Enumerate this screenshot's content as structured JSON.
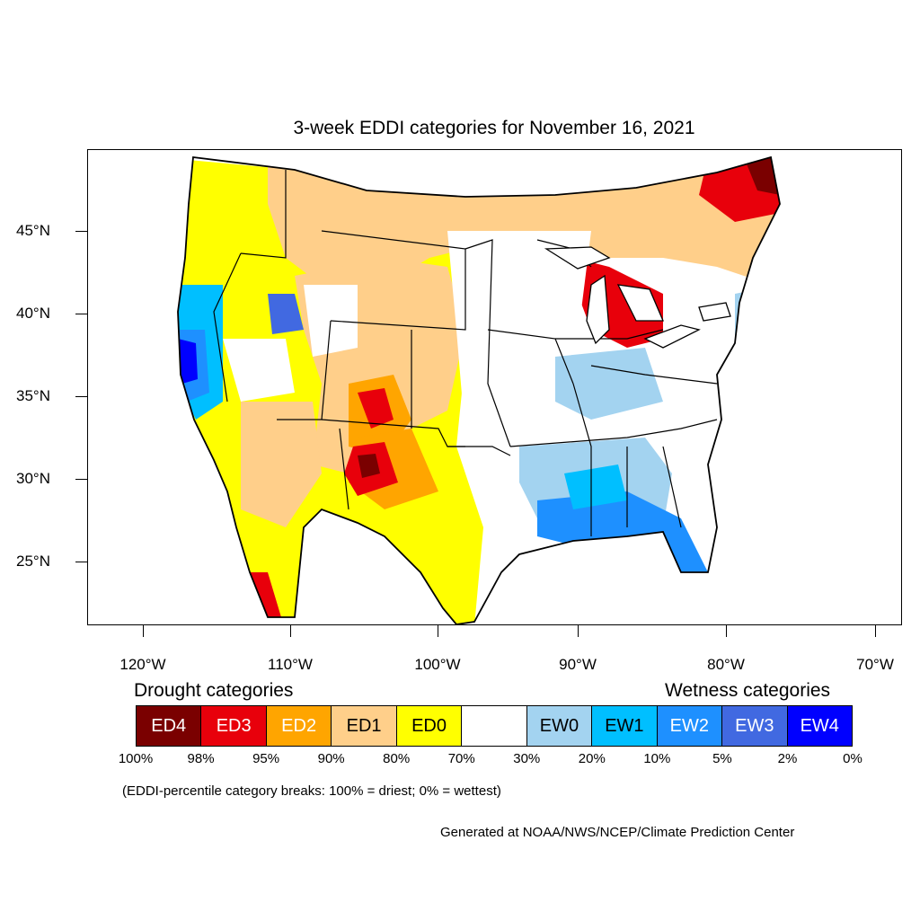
{
  "title": "3-week EDDI categories for November 16, 2021",
  "axes": {
    "lat_labels": [
      "45°N",
      "40°N",
      "35°N",
      "30°N",
      "25°N"
    ],
    "lon_labels": [
      "120°W",
      "110°W",
      "100°W",
      "90°W",
      "80°W",
      "70°W"
    ]
  },
  "legend": {
    "drought_heading": "Drought categories",
    "wetness_heading": "Wetness categories",
    "categories": [
      {
        "label": "ED4",
        "color": "#7a0000",
        "text_color": "#ffffff"
      },
      {
        "label": "ED3",
        "color": "#e8000b",
        "text_color": "#ffffff"
      },
      {
        "label": "ED2",
        "color": "#ffa500",
        "text_color": "#ffffff"
      },
      {
        "label": "ED1",
        "color": "#ffcf8a",
        "text_color": "#000000"
      },
      {
        "label": "ED0",
        "color": "#ffff00",
        "text_color": "#000000"
      },
      {
        "label": "",
        "color": "#ffffff",
        "text_color": "#000000"
      },
      {
        "label": "EW0",
        "color": "#a3d3f0",
        "text_color": "#000000"
      },
      {
        "label": "EW1",
        "color": "#00bfff",
        "text_color": "#000000"
      },
      {
        "label": "EW2",
        "color": "#1e90ff",
        "text_color": "#ffffff"
      },
      {
        "label": "EW3",
        "color": "#4169e1",
        "text_color": "#ffffff"
      },
      {
        "label": "EW4",
        "color": "#0000ff",
        "text_color": "#ffffff"
      }
    ],
    "breaks": [
      "100%",
      "98%",
      "95%",
      "90%",
      "80%",
      "70%",
      "30%",
      "20%",
      "10%",
      "5%",
      "2%",
      "0%"
    ]
  },
  "note": "(EDDI-percentile category breaks: 100% = driest; 0% = wettest)",
  "credit": "Generated at NOAA/NWS/NCEP/Climate Prediction Center"
}
